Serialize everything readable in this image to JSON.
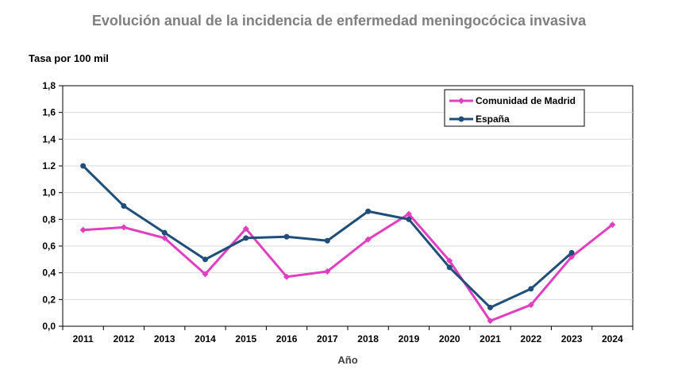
{
  "chart_data": {
    "type": "line",
    "title": "Evolución anual de la incidencia de enfermedad meningocócica invasiva",
    "ylabel": "Tasa por 100 mil",
    "xlabel": "Año",
    "categories": [
      "2011",
      "2012",
      "2013",
      "2014",
      "2015",
      "2016",
      "2017",
      "2018",
      "2019",
      "2020",
      "2021",
      "2022",
      "2023",
      "2024"
    ],
    "y_ticks": [
      "0,0",
      "0,2",
      "0,4",
      "0,6",
      "0,8",
      "1,0",
      "1.2",
      "1,4",
      "1,6",
      "1,8"
    ],
    "ylim": [
      0,
      1.8
    ],
    "grid": true,
    "legend_position": "top-right",
    "series": [
      {
        "name": "Comunidad de Madrid",
        "color": "#e040c0",
        "marker": "diamond",
        "values": [
          0.72,
          0.74,
          0.66,
          0.39,
          0.73,
          0.37,
          0.41,
          0.65,
          0.84,
          0.49,
          0.04,
          0.16,
          0.52,
          0.76
        ]
      },
      {
        "name": "España",
        "color": "#1f4e79",
        "marker": "circle",
        "values": [
          1.2,
          0.9,
          0.7,
          0.5,
          0.66,
          0.67,
          0.64,
          0.86,
          0.8,
          0.44,
          0.14,
          0.28,
          0.55,
          null
        ]
      }
    ]
  }
}
